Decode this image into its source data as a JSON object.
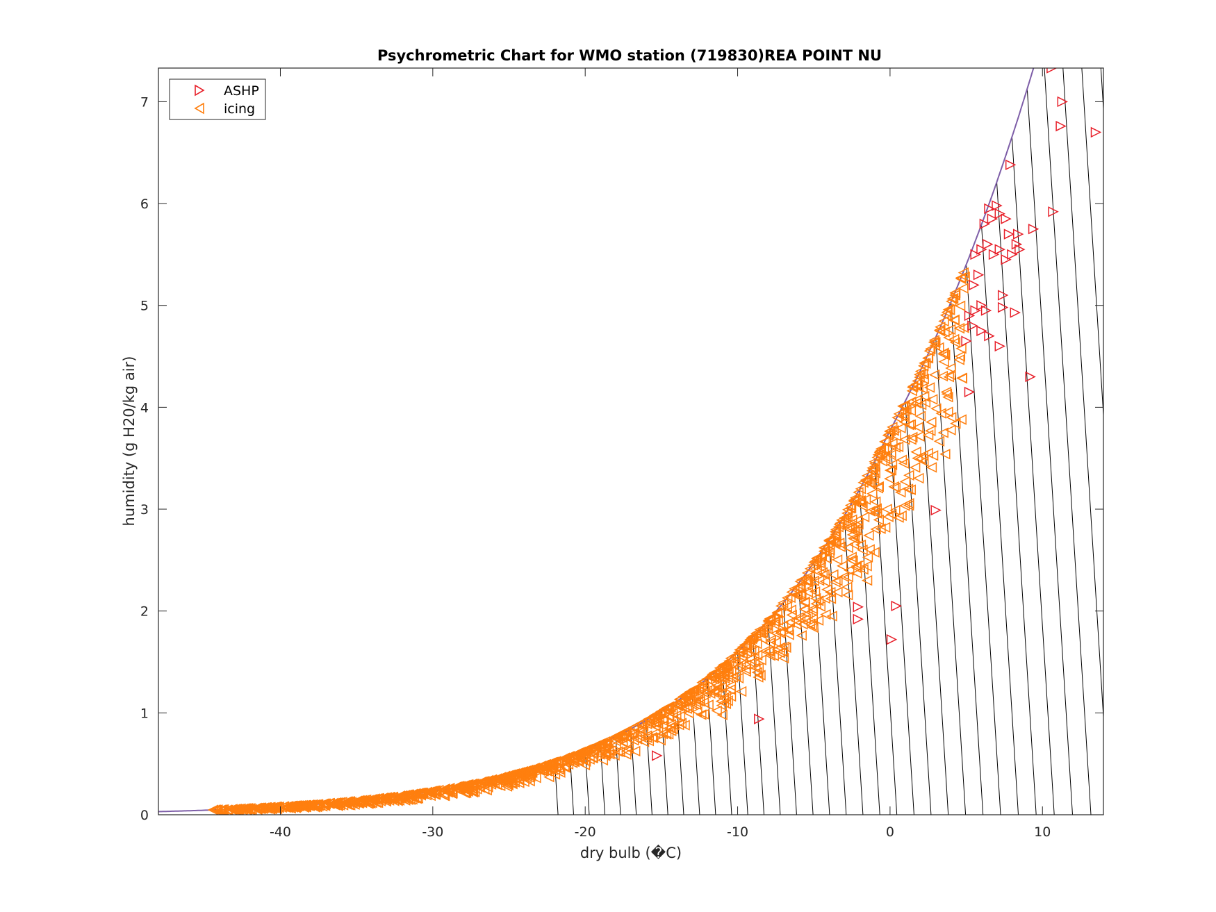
{
  "chart_data": {
    "type": "scatter",
    "title": "Psychrometric Chart for WMO station (719830)REA POINT  NU",
    "xlabel": "dry bulb (�C)",
    "ylabel": "humidity (g H20/kg air)",
    "xlim": [
      -48,
      14
    ],
    "ylim": [
      0,
      7.33
    ],
    "xticks": [
      -40,
      -30,
      -20,
      -10,
      0,
      10
    ],
    "yticks": [
      0,
      1,
      2,
      3,
      4,
      5,
      6,
      7
    ],
    "grid": false,
    "legend_position": "top-left",
    "background_lines": "saturation curve with diagonal constant-enthalpy lines",
    "colors": {
      "ASHP": "#e8202a",
      "icing": "#ff7f0e",
      "saturation_curve": "#7e5ea8",
      "enthalpy_lines": "#000000"
    },
    "series": [
      {
        "name": "ASHP",
        "marker": "right-triangle",
        "points": [
          [
            -15.3,
            0.58
          ],
          [
            -8.6,
            0.94
          ],
          [
            -2.1,
            1.92
          ],
          [
            -2.1,
            2.04
          ],
          [
            0.1,
            1.72
          ],
          [
            0.4,
            2.05
          ],
          [
            3.0,
            2.99
          ],
          [
            5.2,
            4.15
          ],
          [
            9.2,
            4.3
          ],
          [
            5.0,
            4.65
          ],
          [
            5.4,
            4.8
          ],
          [
            6.0,
            4.75
          ],
          [
            6.3,
            4.95
          ],
          [
            7.2,
            4.6
          ],
          [
            7.4,
            4.98
          ],
          [
            8.2,
            4.93
          ],
          [
            7.4,
            5.1
          ],
          [
            5.5,
            5.2
          ],
          [
            5.8,
            5.3
          ],
          [
            6.0,
            5.0
          ],
          [
            5.6,
            5.5
          ],
          [
            6.0,
            5.55
          ],
          [
            6.4,
            5.6
          ],
          [
            6.8,
            5.5
          ],
          [
            7.2,
            5.55
          ],
          [
            7.6,
            5.45
          ],
          [
            8.0,
            5.5
          ],
          [
            8.3,
            5.6
          ],
          [
            8.5,
            5.55
          ],
          [
            8.4,
            5.7
          ],
          [
            7.8,
            5.7
          ],
          [
            9.4,
            5.75
          ],
          [
            6.2,
            5.8
          ],
          [
            6.7,
            5.85
          ],
          [
            7.2,
            5.9
          ],
          [
            7.6,
            5.85
          ],
          [
            6.5,
            5.95
          ],
          [
            7.0,
            5.98
          ],
          [
            10.7,
            5.92
          ],
          [
            7.9,
            6.38
          ],
          [
            11.2,
            6.76
          ],
          [
            13.5,
            6.7
          ],
          [
            11.3,
            7.0
          ],
          [
            10.6,
            7.33
          ],
          [
            5.6,
            4.95
          ],
          [
            6.5,
            4.7
          ],
          [
            5.2,
            4.9
          ]
        ]
      },
      {
        "name": "icing",
        "marker": "left-triangle",
        "description": "dense band of hourly points hugging the saturation curve from about -45 to 5 °C",
        "rh_range": [
          0.72,
          1.0
        ],
        "x_range": [
          -44.5,
          5.0
        ],
        "extra_points": [
          [
            -11.0,
            0.98
          ],
          [
            -8.5,
            1.37
          ],
          [
            -5.8,
            1.76
          ],
          [
            -3.8,
            1.95
          ],
          [
            -2.0,
            2.45
          ],
          [
            -1.8,
            2.6
          ],
          [
            1.0,
            3.27
          ],
          [
            1.8,
            3.5
          ],
          [
            2.5,
            3.55
          ],
          [
            3.5,
            3.75
          ],
          [
            4.3,
            3.84
          ],
          [
            2.2,
            3.47
          ],
          [
            -1.5,
            2.3
          ],
          [
            -0.2,
            3.0
          ],
          [
            3.8,
            4.1
          ],
          [
            4.6,
            4.5
          ]
        ]
      }
    ]
  }
}
